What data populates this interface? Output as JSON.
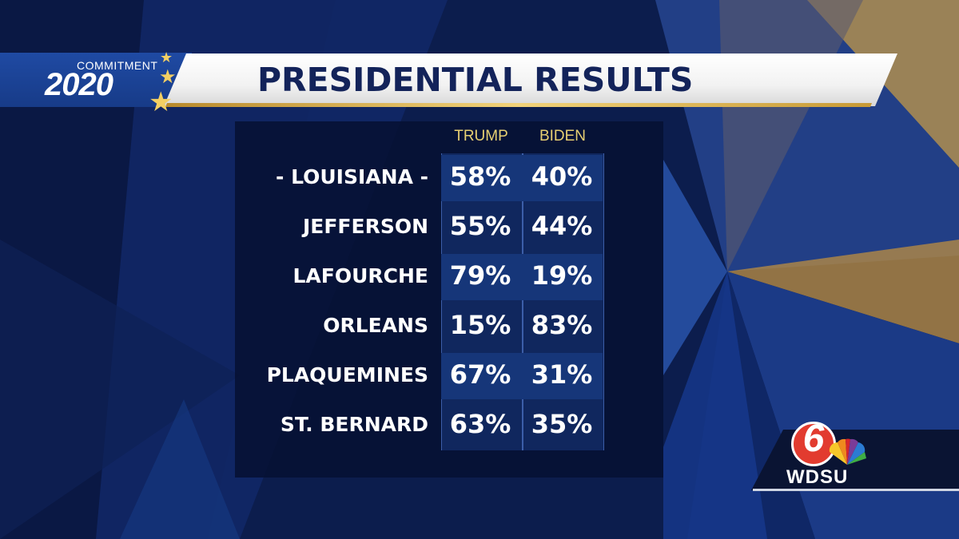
{
  "logo": {
    "line1": "COMMITMENT",
    "line2": "2020"
  },
  "banner": {
    "title": "PRESIDENTIAL RESULTS"
  },
  "columns": [
    "TRUMP",
    "BIDEN"
  ],
  "rows": [
    {
      "name": "- LOUISIANA -",
      "trump": "58%",
      "biden": "40%"
    },
    {
      "name": "JEFFERSON",
      "trump": "55%",
      "biden": "44%"
    },
    {
      "name": "LAFOURCHE",
      "trump": "79%",
      "biden": "19%"
    },
    {
      "name": "ORLEANS",
      "trump": "15%",
      "biden": "83%"
    },
    {
      "name": "PLAQUEMINES",
      "trump": "67%",
      "biden": "31%"
    },
    {
      "name": "ST. BERNARD",
      "trump": "63%",
      "biden": "35%"
    }
  ],
  "station": {
    "channel": "6",
    "call_letters": "WDSU"
  },
  "colors": {
    "header_gold": "#e7cf72",
    "panel": "#061032",
    "accent_red": "#e23b2f"
  }
}
